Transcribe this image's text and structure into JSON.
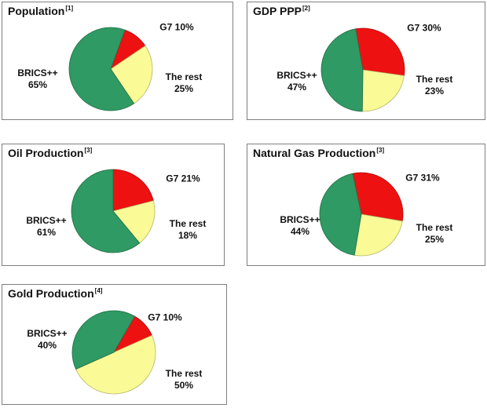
{
  "page": {
    "background_color": "#ffffff",
    "panel_border_color": "#7f7f7f",
    "text_color": "#111111"
  },
  "colors": {
    "brics_green": "#2f9a63",
    "g7_red": "#ee1111",
    "rest_yellow": "#fafa96"
  },
  "chart_data": [
    {
      "type": "pie",
      "title": "Population",
      "footnote": "[1]",
      "direction": "clockwise",
      "start_angle_deg": 20,
      "legend": "none",
      "slices": [
        {
          "label": "G7",
          "value": 10,
          "value_label": "10%",
          "color": "#ee1111"
        },
        {
          "label": "The rest",
          "value": 25,
          "value_label": "25%",
          "color": "#fafa96"
        },
        {
          "label": "BRICS++",
          "value": 65,
          "value_label": "65%",
          "color": "#2f9a63"
        }
      ]
    },
    {
      "type": "pie",
      "title": "GDP PPP",
      "footnote": "[2]",
      "direction": "clockwise",
      "start_angle_deg": -10,
      "legend": "none",
      "slices": [
        {
          "label": "G7",
          "value": 30,
          "value_label": "30%",
          "color": "#ee1111"
        },
        {
          "label": "The rest",
          "value": 23,
          "value_label": "23%",
          "color": "#fafa96"
        },
        {
          "label": "BRICS++",
          "value": 47,
          "value_label": "47%",
          "color": "#2f9a63"
        }
      ]
    },
    {
      "type": "pie",
      "title": "Oil Production",
      "footnote": "[3]",
      "direction": "clockwise",
      "start_angle_deg": 0,
      "legend": "none",
      "slices": [
        {
          "label": "G7",
          "value": 21,
          "value_label": "21%",
          "color": "#ee1111"
        },
        {
          "label": "The rest",
          "value": 18,
          "value_label": "18%",
          "color": "#fafa96"
        },
        {
          "label": "BRICS++",
          "value": 61,
          "value_label": "61%",
          "color": "#2f9a63"
        }
      ]
    },
    {
      "type": "pie",
      "title": "Natural Gas Production",
      "footnote": "[3]",
      "direction": "clockwise",
      "start_angle_deg": -12,
      "legend": "none",
      "slices": [
        {
          "label": "G7",
          "value": 31,
          "value_label": "31%",
          "color": "#ee1111"
        },
        {
          "label": "The rest",
          "value": 25,
          "value_label": "25%",
          "color": "#fafa96"
        },
        {
          "label": "BRICS++",
          "value": 44,
          "value_label": "44%",
          "color": "#2f9a63"
        }
      ]
    },
    {
      "type": "pie",
      "title": "Gold Production",
      "footnote": "[4]",
      "direction": "clockwise",
      "start_angle_deg": 30,
      "legend": "none",
      "slices": [
        {
          "label": "G7",
          "value": 10,
          "value_label": "10%",
          "color": "#ee1111"
        },
        {
          "label": "The rest",
          "value": 50,
          "value_label": "50%",
          "color": "#fafa96"
        },
        {
          "label": "BRICS++",
          "value": 40,
          "value_label": "40%",
          "color": "#2f9a63"
        }
      ]
    }
  ]
}
